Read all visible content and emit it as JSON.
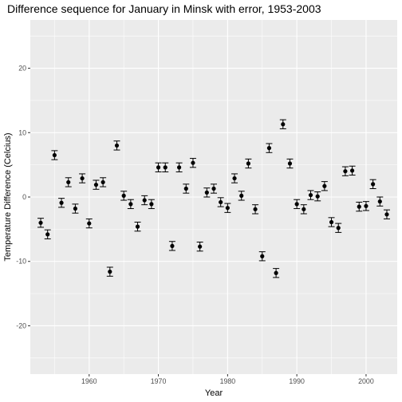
{
  "chart_data": {
    "type": "scatter",
    "title": "Difference sequence for January in Minsk with error, 1953-2003",
    "xlabel": "Year",
    "ylabel": "Temperature Difference (Celcius)",
    "xlim": [
      1951.5,
      2004.5
    ],
    "ylim": [
      -27.5,
      27.5
    ],
    "x_ticks": [
      1960,
      1970,
      1980,
      1990,
      2000
    ],
    "y_ticks": [
      -20,
      -10,
      0,
      10,
      20
    ],
    "grid": true,
    "background_color": "#EBEBEB",
    "grid_color": "#FFFFFF",
    "point_color": "#000000",
    "error_half_width": 0.7,
    "points": [
      {
        "x": 1953,
        "y": -4.0
      },
      {
        "x": 1954,
        "y": -5.8
      },
      {
        "x": 1955,
        "y": 6.5
      },
      {
        "x": 1956,
        "y": -0.9
      },
      {
        "x": 1957,
        "y": 2.3
      },
      {
        "x": 1958,
        "y": -1.8
      },
      {
        "x": 1959,
        "y": 2.9
      },
      {
        "x": 1960,
        "y": -4.1
      },
      {
        "x": 1961,
        "y": 1.9
      },
      {
        "x": 1962,
        "y": 2.3
      },
      {
        "x": 1963,
        "y": -11.6
      },
      {
        "x": 1964,
        "y": 8.0
      },
      {
        "x": 1965,
        "y": 0.2
      },
      {
        "x": 1966,
        "y": -1.1
      },
      {
        "x": 1967,
        "y": -4.6
      },
      {
        "x": 1968,
        "y": -0.5
      },
      {
        "x": 1969,
        "y": -1.1
      },
      {
        "x": 1970,
        "y": 4.6
      },
      {
        "x": 1971,
        "y": 4.6
      },
      {
        "x": 1972,
        "y": -7.6
      },
      {
        "x": 1973,
        "y": 4.6
      },
      {
        "x": 1974,
        "y": 1.3
      },
      {
        "x": 1975,
        "y": 5.3
      },
      {
        "x": 1976,
        "y": -7.7
      },
      {
        "x": 1977,
        "y": 0.7
      },
      {
        "x": 1978,
        "y": 1.3
      },
      {
        "x": 1979,
        "y": -0.8
      },
      {
        "x": 1980,
        "y": -1.7
      },
      {
        "x": 1981,
        "y": 2.9
      },
      {
        "x": 1982,
        "y": 0.2
      },
      {
        "x": 1983,
        "y": 5.2
      },
      {
        "x": 1984,
        "y": -1.9
      },
      {
        "x": 1985,
        "y": -9.2
      },
      {
        "x": 1986,
        "y": 7.6
      },
      {
        "x": 1987,
        "y": -11.8
      },
      {
        "x": 1988,
        "y": 11.3
      },
      {
        "x": 1989,
        "y": 5.2
      },
      {
        "x": 1990,
        "y": -1.1
      },
      {
        "x": 1991,
        "y": -1.9
      },
      {
        "x": 1992,
        "y": 0.3
      },
      {
        "x": 1993,
        "y": 0.1
      },
      {
        "x": 1994,
        "y": 1.7
      },
      {
        "x": 1995,
        "y": -3.9
      },
      {
        "x": 1996,
        "y": -4.8
      },
      {
        "x": 1997,
        "y": 4.0
      },
      {
        "x": 1998,
        "y": 4.1
      },
      {
        "x": 1999,
        "y": -1.5
      },
      {
        "x": 2000,
        "y": -1.4
      },
      {
        "x": 2001,
        "y": 2.0
      },
      {
        "x": 2002,
        "y": -0.7
      },
      {
        "x": 2003,
        "y": -2.7
      }
    ]
  }
}
